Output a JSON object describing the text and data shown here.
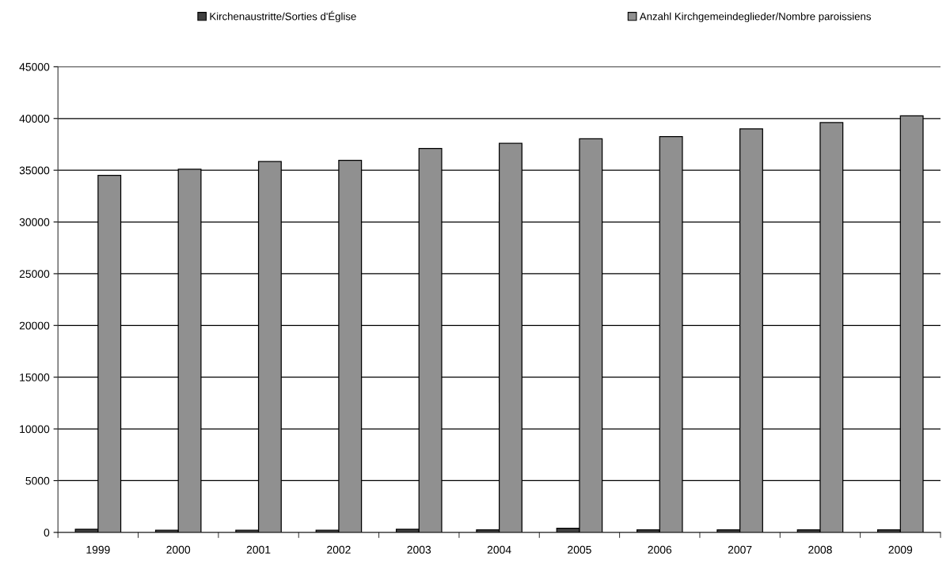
{
  "chart_data": {
    "type": "bar",
    "categories": [
      "1999",
      "2000",
      "2001",
      "2002",
      "2003",
      "2004",
      "2005",
      "2006",
      "2007",
      "2008",
      "2009"
    ],
    "series": [
      {
        "name": "Kirchenaustritte/Sorties d'Église",
        "color": "#404040",
        "values": [
          300,
          200,
          200,
          200,
          300,
          250,
          400,
          250,
          250,
          250,
          250
        ]
      },
      {
        "name": "Anzahl Kirchgemeindeglieder/Nombre paroissiens",
        "color": "#909090",
        "values": [
          34500,
          35100,
          35850,
          35950,
          37100,
          37600,
          38050,
          38250,
          39000,
          39600,
          40250
        ]
      }
    ],
    "ylim": [
      0,
      45000
    ],
    "yticks": [
      0,
      5000,
      10000,
      15000,
      20000,
      25000,
      30000,
      35000,
      40000,
      45000
    ],
    "grid": "y",
    "legend": "top"
  }
}
